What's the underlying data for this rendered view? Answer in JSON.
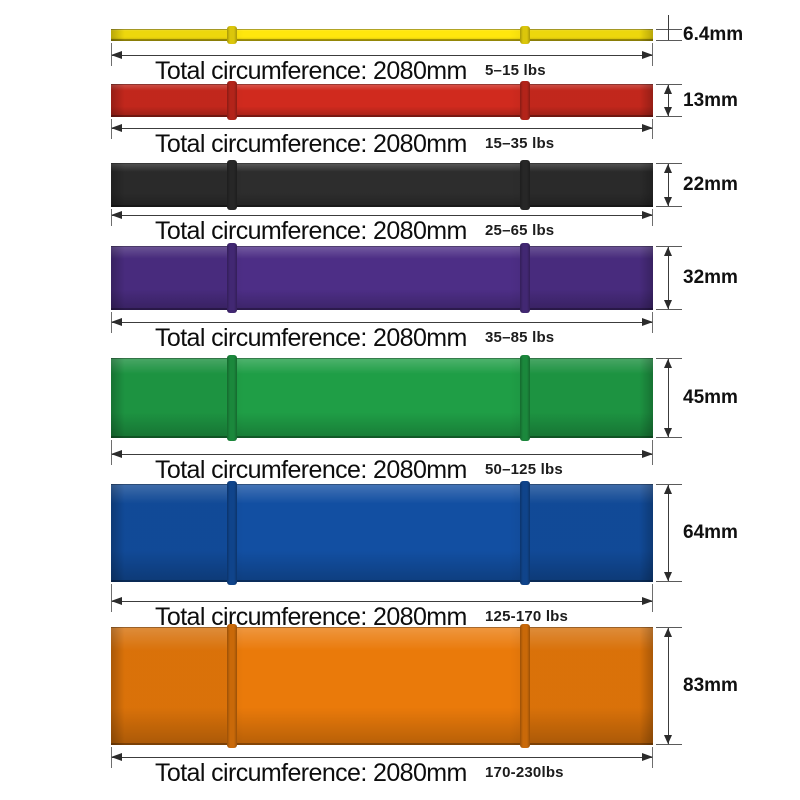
{
  "page": {
    "background": "#ffffff"
  },
  "dimension": {
    "circumference_label": "Total circumference: 2080mm"
  },
  "bands": [
    {
      "name": "yellow",
      "color": "#ffe70d",
      "color_dark": "#d4b900",
      "width_label": "6.4mm",
      "resistance_label": "5–15 lbs"
    },
    {
      "name": "red",
      "color": "#d02a1e",
      "color_dark": "#9f1912",
      "width_label": "13mm",
      "resistance_label": "15–35 lbs"
    },
    {
      "name": "black",
      "color": "#2d2d2d",
      "color_dark": "#111111",
      "width_label": "22mm",
      "resistance_label": "25–65 lbs"
    },
    {
      "name": "purple",
      "color": "#4d2e86",
      "color_dark": "#331d5e",
      "width_label": "32mm",
      "resistance_label": "35–85 lbs"
    },
    {
      "name": "green",
      "color": "#1f9e46",
      "color_dark": "#126e2e",
      "width_label": "45mm",
      "resistance_label": "50–125 lbs"
    },
    {
      "name": "blue",
      "color": "#124fa2",
      "color_dark": "#0a3573",
      "width_label": "64mm",
      "resistance_label": "125-170 lbs"
    },
    {
      "name": "orange",
      "color": "#ea7a0a",
      "color_dark": "#b55a02",
      "width_label": "83mm",
      "resistance_label": "170-230lbs"
    }
  ]
}
